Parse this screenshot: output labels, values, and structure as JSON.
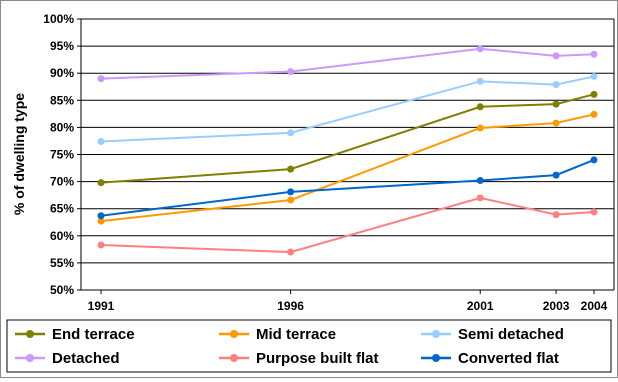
{
  "chart_data": {
    "type": "line",
    "title": "",
    "xlabel": "",
    "ylabel": "% of dwelling type",
    "x": [
      1991,
      1996,
      2001,
      2003,
      2004
    ],
    "x_tick_labels": [
      "1991",
      "1996",
      "2001",
      "2003",
      "2004"
    ],
    "xlim": [
      1991,
      2004
    ],
    "ylim": [
      50,
      100
    ],
    "y_ticks": [
      50,
      55,
      60,
      65,
      70,
      75,
      80,
      85,
      90,
      95,
      100
    ],
    "y_tick_labels": [
      "50%",
      "55%",
      "60%",
      "65%",
      "70%",
      "75%",
      "80%",
      "85%",
      "90%",
      "95%",
      "100%"
    ],
    "grid": true,
    "legend_position": "bottom",
    "series": [
      {
        "name": "End terrace",
        "color": "#808000",
        "values": [
          69.8,
          72.3,
          83.8,
          84.3,
          86.1
        ]
      },
      {
        "name": "Mid terrace",
        "color": "#FF9900",
        "values": [
          62.7,
          66.6,
          79.9,
          80.8,
          82.4
        ]
      },
      {
        "name": "Semi detached",
        "color": "#99CCFF",
        "values": [
          77.4,
          79.0,
          88.5,
          87.9,
          89.4
        ]
      },
      {
        "name": "Detached",
        "color": "#CC99FF",
        "values": [
          89.0,
          90.3,
          94.5,
          93.2,
          93.5
        ]
      },
      {
        "name": "Purpose built flat",
        "color": "#FF8080",
        "values": [
          58.3,
          57.0,
          67.0,
          63.9,
          64.4
        ]
      },
      {
        "name": "Converted flat",
        "color": "#0066CC",
        "values": [
          63.7,
          68.1,
          70.2,
          71.2,
          74.0
        ]
      }
    ]
  }
}
